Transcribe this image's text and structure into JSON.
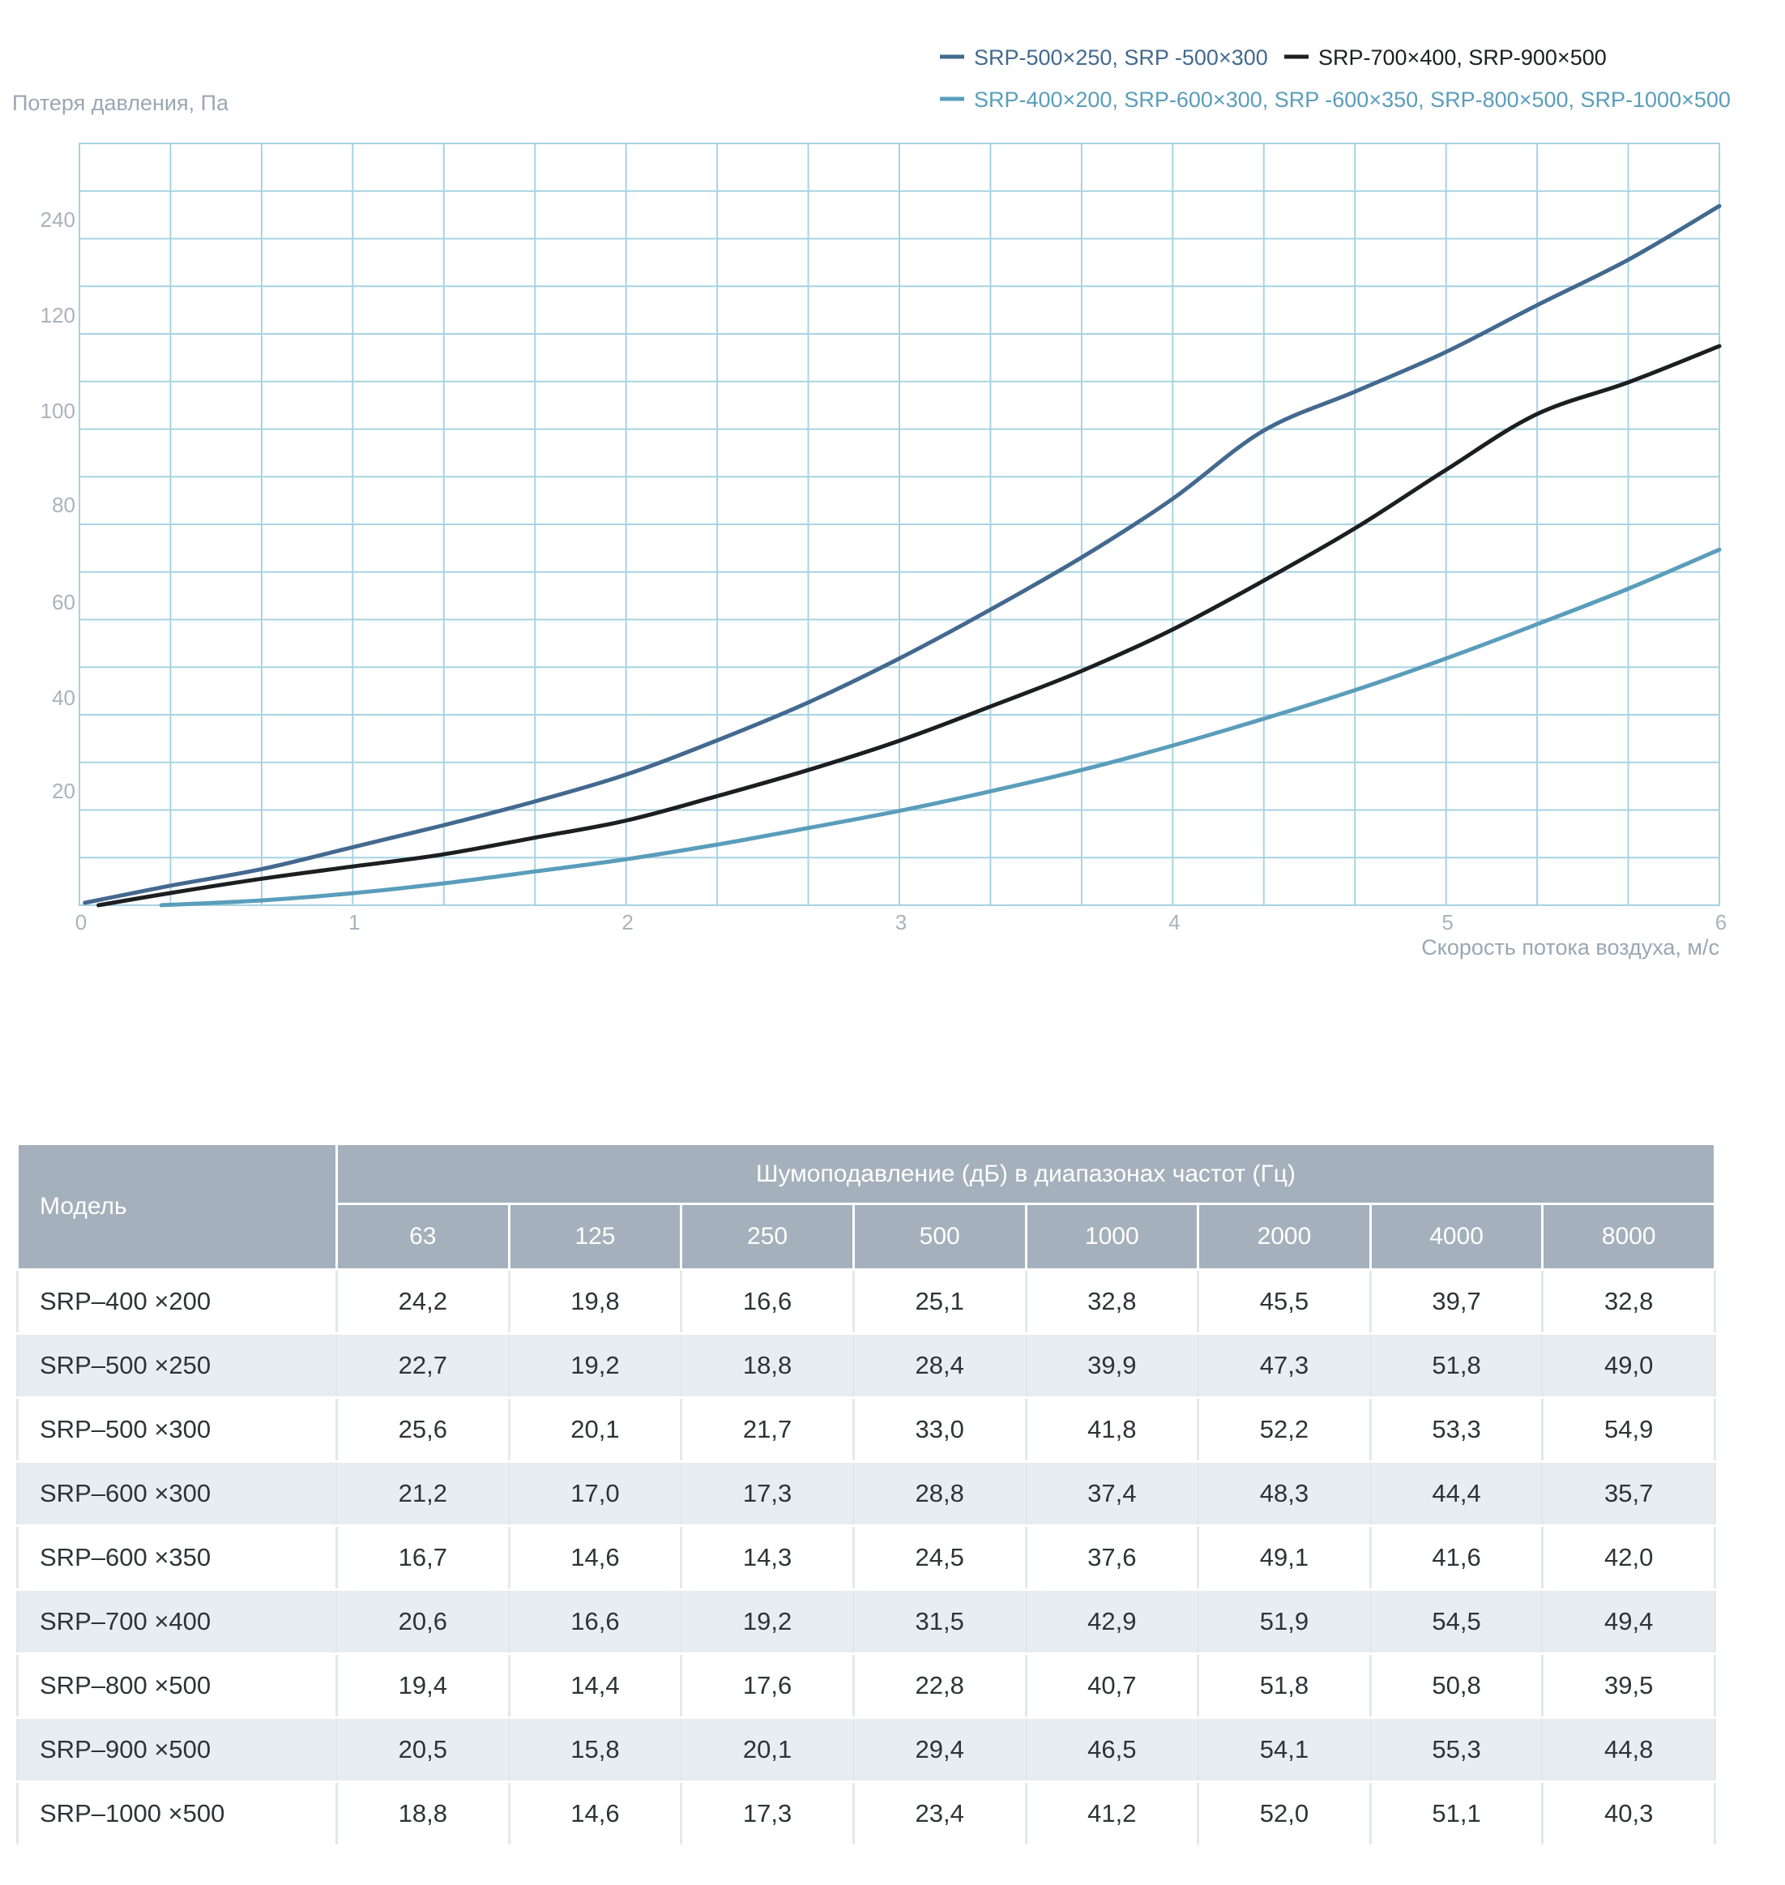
{
  "chart_data": {
    "type": "line",
    "ylabel": "Потеря давления, Па",
    "xlabel": "Скорость потока воздуха, м/с",
    "x_ticks": [
      "0",
      "1",
      "2",
      "3",
      "4",
      "5",
      "6"
    ],
    "y_ticks": [
      "20",
      "40",
      "60",
      "80",
      "100",
      "120",
      "240"
    ],
    "xlim": [
      0,
      6
    ],
    "grid": true,
    "legend_position": "top-right",
    "series": [
      {
        "name": "SRP-500×250, SRP -500×300",
        "color": "#43698f",
        "x": [
          0.02,
          0.33,
          0.67,
          1.0,
          1.33,
          1.67,
          2.0,
          2.33,
          2.67,
          3.0,
          3.33,
          3.67,
          4.0,
          4.33,
          4.67,
          5.0,
          5.33,
          5.67,
          6.0
        ],
        "y": [
          0.5,
          4,
          7.5,
          12,
          16.5,
          21.5,
          27,
          34,
          42,
          51,
          61,
          72,
          84,
          98,
          113,
          130,
          150,
          170,
          193
        ]
      },
      {
        "name": "SRP-700×400, SRP-900×500",
        "color": "#1c1e21",
        "x": [
          0.07,
          0.33,
          0.67,
          1.0,
          1.33,
          1.67,
          2.0,
          2.33,
          2.67,
          3.0,
          3.33,
          3.67,
          4.0,
          4.33,
          4.67,
          5.0,
          5.33,
          5.67,
          6.0
        ],
        "y": [
          0,
          2.5,
          5.5,
          8,
          10.5,
          14,
          17.5,
          22.5,
          28,
          34,
          41,
          48.5,
          57,
          67,
          78,
          90,
          103,
          117,
          132.5
        ]
      },
      {
        "name": "SRP-400×200, SRP-600×300, SRP -600×350, SRP-800×500, SRP-1000×500",
        "color": "#5a9dbb",
        "x": [
          0.3,
          0.67,
          1.0,
          1.33,
          1.67,
          2.0,
          2.33,
          2.67,
          3.0,
          3.33,
          3.67,
          4.0,
          4.33,
          4.67,
          5.0,
          5.33,
          5.67,
          6.0
        ],
        "y": [
          0,
          1,
          2.5,
          4.5,
          7,
          9.5,
          12.5,
          16,
          19.5,
          23.5,
          28,
          33,
          38.5,
          44.5,
          51,
          58,
          65.5,
          73.5
        ]
      }
    ]
  },
  "table": {
    "model_header": "Модель",
    "group_header": "Шумоподавление (дБ) в диапазонах частот (Гц)",
    "frequencies": [
      "63",
      "125",
      "250",
      "500",
      "1000",
      "2000",
      "4000",
      "8000"
    ],
    "rows": [
      {
        "model": "SRP–400  ×200",
        "values": [
          "24,2",
          "19,8",
          "16,6",
          "25,1",
          "32,8",
          "45,5",
          "39,7",
          "32,8"
        ]
      },
      {
        "model": "SRP–500  ×250",
        "values": [
          "22,7",
          "19,2",
          "18,8",
          "28,4",
          "39,9",
          "47,3",
          "51,8",
          "49,0"
        ]
      },
      {
        "model": "SRP–500  ×300",
        "values": [
          "25,6",
          "20,1",
          "21,7",
          "33,0",
          "41,8",
          "52,2",
          "53,3",
          "54,9"
        ]
      },
      {
        "model": "SRP–600  ×300",
        "values": [
          "21,2",
          "17,0",
          "17,3",
          "28,8",
          "37,4",
          "48,3",
          "44,4",
          "35,7"
        ]
      },
      {
        "model": "SRP–600  ×350",
        "values": [
          "16,7",
          "14,6",
          "14,3",
          "24,5",
          "37,6",
          "49,1",
          "41,6",
          "42,0"
        ]
      },
      {
        "model": "SRP–700  ×400",
        "values": [
          "20,6",
          "16,6",
          "19,2",
          "31,5",
          "42,9",
          "51,9",
          "54,5",
          "49,4"
        ]
      },
      {
        "model": "SRP–800  ×500",
        "values": [
          "19,4",
          "14,4",
          "17,6",
          "22,8",
          "40,7",
          "51,8",
          "50,8",
          "39,5"
        ]
      },
      {
        "model": "SRP–900  ×500",
        "values": [
          "20,5",
          "15,8",
          "20,1",
          "29,4",
          "46,5",
          "54,1",
          "55,3",
          "44,8"
        ]
      },
      {
        "model": "SRP–1000  ×500",
        "values": [
          "18,8",
          "14,6",
          "17,3",
          "23,4",
          "41,2",
          "52,0",
          "51,1",
          "40,3"
        ]
      }
    ]
  }
}
